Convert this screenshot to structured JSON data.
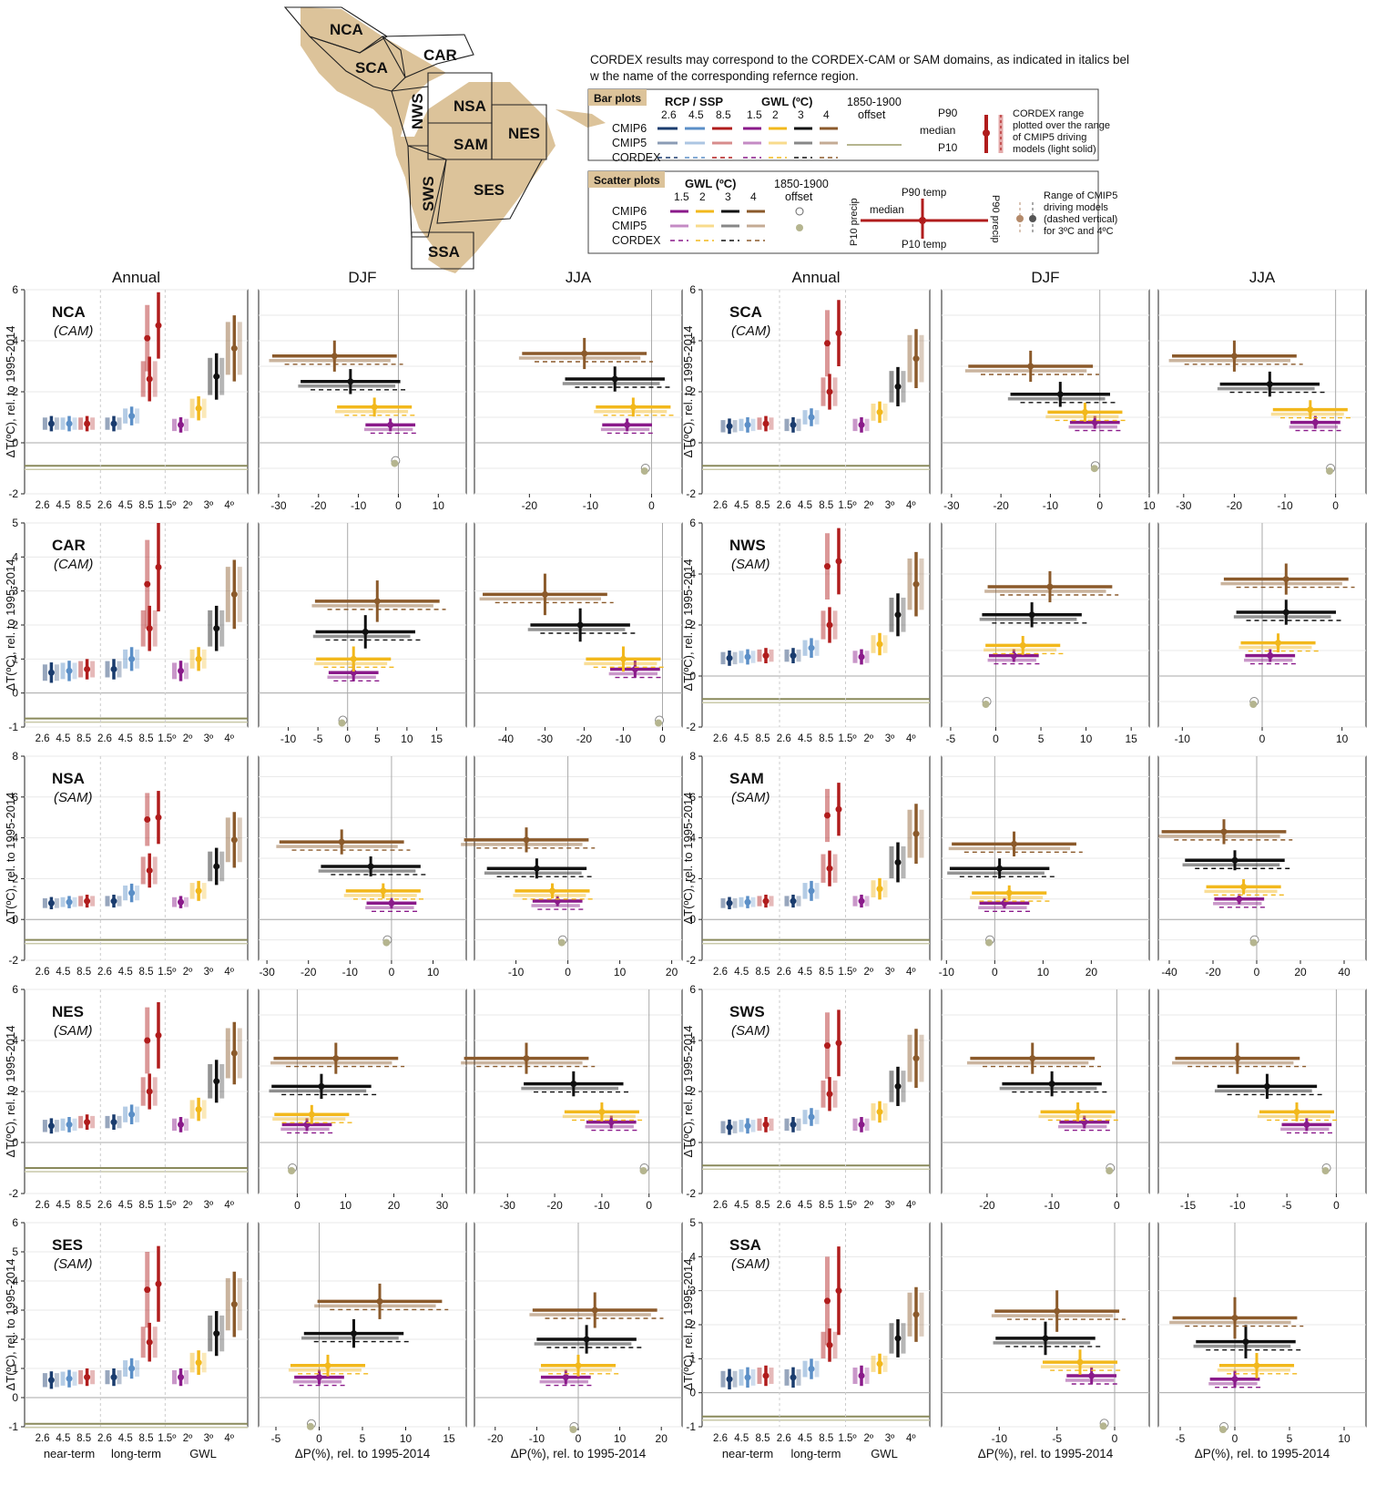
{
  "legend": {
    "note": "CORDEX results may correspond to the CORDEX-CAM or SAM domains, as indicated in italics below the name of the corresponding refernce region.",
    "bar_plots": {
      "title": "Bar plots",
      "rcp_label": "RCP / SSP",
      "rcp_ticks": [
        "2.6",
        "4.5",
        "8.5"
      ],
      "gwl_label": "GWL (ºC)",
      "gwl_ticks": [
        "1.5",
        "2",
        "3",
        "4"
      ],
      "offset_label": [
        "1850-1900",
        "offset"
      ],
      "rows": [
        "CMIP6",
        "CMIP5",
        "CORDEX"
      ],
      "whisker_labels": [
        "P90",
        "median",
        "P10"
      ],
      "note": [
        "CORDEX range",
        "plotted over the range",
        "of CMIP5 driving",
        "models (light solid)"
      ]
    },
    "scatter_plots": {
      "title": "Scatter plots",
      "gwl_label": "GWL (ºC)",
      "gwl_ticks": [
        "1.5",
        "2",
        "3",
        "4"
      ],
      "offset_label": [
        "1850-1900",
        "offset"
      ],
      "rows": [
        "CMIP6",
        "CMIP5",
        "CORDEX"
      ],
      "cross_labels": [
        "P90 temp",
        "median",
        "P10 temp",
        "P10 precip",
        "P90 precip"
      ],
      "note": [
        "Range of CMIP5",
        "driving models",
        "(dashed vertical)",
        "for 3ºC and 4ºC"
      ]
    }
  },
  "map": {
    "regions": [
      "NCA",
      "SCA",
      "CAR",
      "NWS",
      "NSA",
      "SAM",
      "NES",
      "SWS",
      "SES",
      "SSA"
    ]
  },
  "column_headers": [
    "Annual",
    "DJF",
    "JJA",
    "Annual",
    "DJF",
    "JJA"
  ],
  "axis_labels": {
    "y": "ΔT(ºC), rel. to 1995-2014",
    "x_precip": "ΔP(%), rel. to 1995-2014",
    "bar_groups": [
      "near-term",
      "long-term",
      "GWL"
    ],
    "bar_ticks": [
      "2.6",
      "4.5",
      "8.5",
      "2.6",
      "4.5",
      "8.5",
      "1.5º",
      "2º",
      "3º",
      "4º"
    ]
  },
  "colors": {
    "rcp26": "#1a3c6e",
    "rcp45": "#5b8fc7",
    "rcp85": "#b01c1c",
    "gwl15": "#8a1a8a",
    "gwl2": "#f2b81c",
    "gwl3": "#111111",
    "gwl4": "#8b5a2b",
    "offset": "#8a8a5c",
    "gridline": "#e8e8e8"
  },
  "chart_data": [
    {
      "region": "NCA",
      "domain": "(CAM)",
      "type": "bar",
      "yticks": [
        "-2",
        "0",
        "2",
        "4",
        "6"
      ],
      "ylim": [
        -2,
        6
      ],
      "near": [
        0.75,
        0.75,
        0.75
      ],
      "long": [
        0.75,
        1.05,
        2.5
      ],
      "h85": [
        4.1,
        4.6
      ],
      "gwl": [
        0.7,
        1.35,
        2.6,
        3.7
      ],
      "offset": -0.9,
      "djf": {
        "xticks": [
          "-30",
          "-20",
          "-10",
          "0",
          "10"
        ],
        "xlim": [
          -35,
          17
        ],
        "pts": [
          [
            -2,
            0.7
          ],
          [
            -6,
            1.4
          ],
          [
            -12,
            2.4
          ],
          [
            -16,
            3.4
          ]
        ],
        "off": [
          -0.7,
          -0.7
        ]
      },
      "jja": {
        "xticks": [
          "-20",
          "-10",
          "0"
        ],
        "xlim": [
          -29,
          5
        ],
        "pts": [
          [
            -4,
            0.7
          ],
          [
            -3,
            1.4
          ],
          [
            -6,
            2.5
          ],
          [
            -11,
            3.5
          ]
        ],
        "off": [
          -1,
          -1
        ]
      }
    },
    {
      "region": "SCA",
      "domain": "(CAM)",
      "type": "bar",
      "yticks": [
        "-2",
        "0",
        "2",
        "4",
        "6"
      ],
      "ylim": [
        -2,
        6
      ],
      "near": [
        0.65,
        0.7,
        0.75
      ],
      "long": [
        0.7,
        1.0,
        2.0
      ],
      "h85": [
        3.9,
        4.3
      ],
      "gwl": [
        0.7,
        1.2,
        2.2,
        3.3
      ],
      "offset": -0.9,
      "djf": {
        "xticks": [
          "-30",
          "-20",
          "-10",
          "0",
          "10"
        ],
        "xlim": [
          -32,
          10
        ],
        "pts": [
          [
            -1,
            0.8
          ],
          [
            -3,
            1.2
          ],
          [
            -8,
            1.9
          ],
          [
            -14,
            3.0
          ]
        ],
        "off": [
          -0.9,
          -0.9
        ]
      },
      "jja": {
        "xticks": [
          "-30",
          "-20",
          "-10",
          "0"
        ],
        "xlim": [
          -35,
          6
        ],
        "pts": [
          [
            -4,
            0.8
          ],
          [
            -5,
            1.3
          ],
          [
            -13,
            2.3
          ],
          [
            -20,
            3.4
          ]
        ],
        "off": [
          -1,
          -1
        ]
      }
    },
    {
      "region": "CAR",
      "domain": "(CAM)",
      "type": "bar",
      "yticks": [
        "-1",
        "0",
        "1",
        "2",
        "3",
        "4",
        "5"
      ],
      "ylim": [
        -1,
        5
      ],
      "near": [
        0.6,
        0.65,
        0.7
      ],
      "long": [
        0.7,
        1.0,
        1.9
      ],
      "h85": [
        3.2,
        3.7
      ],
      "gwl": [
        0.65,
        1.0,
        1.9,
        2.9
      ],
      "offset": -0.75,
      "djf": {
        "xticks": [
          "-10",
          "-5",
          "0",
          "5",
          "10",
          "15"
        ],
        "xlim": [
          -15,
          20
        ],
        "pts": [
          [
            1,
            0.6
          ],
          [
            1,
            1.0
          ],
          [
            3,
            1.8
          ],
          [
            5,
            2.7
          ]
        ],
        "off": [
          -0.8,
          -0.8
        ]
      },
      "jja": {
        "xticks": [
          "-40",
          "-30",
          "-20",
          "-10",
          "0"
        ],
        "xlim": [
          -48,
          5
        ],
        "pts": [
          [
            -7,
            0.7
          ],
          [
            -10,
            1.0
          ],
          [
            -21,
            2.0
          ],
          [
            -30,
            2.9
          ]
        ],
        "off": [
          -0.8,
          -0.8
        ]
      }
    },
    {
      "region": "NWS",
      "domain": "(SAM)",
      "type": "bar",
      "yticks": [
        "-2",
        "0",
        "2",
        "4",
        "6"
      ],
      "ylim": [
        -2,
        6
      ],
      "near": [
        0.7,
        0.75,
        0.8
      ],
      "long": [
        0.8,
        1.1,
        2.0
      ],
      "h85": [
        4.3,
        4.5
      ],
      "gwl": [
        0.75,
        1.25,
        2.4,
        3.6
      ],
      "offset": -0.9,
      "djf": {
        "xticks": [
          "-5",
          "0",
          "5",
          "10",
          "15"
        ],
        "xlim": [
          -6,
          17
        ],
        "pts": [
          [
            2,
            0.8
          ],
          [
            3,
            1.2
          ],
          [
            4,
            2.4
          ],
          [
            6,
            3.5
          ]
        ],
        "off": [
          -1,
          -1
        ]
      },
      "jja": {
        "xticks": [
          "-10",
          "0",
          "10"
        ],
        "xlim": [
          -13,
          13
        ],
        "pts": [
          [
            1,
            0.8
          ],
          [
            2,
            1.3
          ],
          [
            3,
            2.5
          ],
          [
            3,
            3.8
          ]
        ],
        "off": [
          -1,
          -1
        ]
      }
    },
    {
      "region": "NSA",
      "domain": "(SAM)",
      "type": "bar",
      "yticks": [
        "-2",
        "0",
        "2",
        "4",
        "6",
        "8"
      ],
      "ylim": [
        -2,
        8
      ],
      "near": [
        0.8,
        0.85,
        0.9
      ],
      "long": [
        0.9,
        1.3,
        2.4
      ],
      "h85": [
        4.9,
        5.0
      ],
      "gwl": [
        0.85,
        1.4,
        2.6,
        3.9
      ],
      "offset": -1.0,
      "djf": {
        "xticks": [
          "-30",
          "-20",
          "-10",
          "0",
          "10"
        ],
        "xlim": [
          -32,
          18
        ],
        "pts": [
          [
            0,
            0.8
          ],
          [
            -2,
            1.4
          ],
          [
            -5,
            2.6
          ],
          [
            -12,
            3.8
          ]
        ],
        "off": [
          -1,
          -1
        ]
      },
      "jja": {
        "xticks": [
          "-10",
          "0",
          "10",
          "20"
        ],
        "xlim": [
          -18,
          22
        ],
        "pts": [
          [
            -2,
            0.9
          ],
          [
            -3,
            1.4
          ],
          [
            -6,
            2.5
          ],
          [
            -8,
            3.9
          ]
        ],
        "off": [
          -1,
          -1
        ]
      }
    },
    {
      "region": "SAM",
      "domain": "(SAM)",
      "type": "bar",
      "yticks": [
        "-2",
        "0",
        "2",
        "4",
        "6",
        "8"
      ],
      "ylim": [
        -2,
        8
      ],
      "near": [
        0.8,
        0.85,
        0.9
      ],
      "long": [
        0.9,
        1.4,
        2.5
      ],
      "h85": [
        5.1,
        5.4
      ],
      "gwl": [
        0.9,
        1.5,
        2.8,
        4.2
      ],
      "offset": -1.0,
      "djf": {
        "xticks": [
          "-10",
          "0",
          "10",
          "20"
        ],
        "xlim": [
          -11,
          32
        ],
        "pts": [
          [
            2,
            0.8
          ],
          [
            3,
            1.3
          ],
          [
            1,
            2.5
          ],
          [
            4,
            3.7
          ]
        ],
        "off": [
          -1,
          -1
        ]
      },
      "jja": {
        "xticks": [
          "-40",
          "-20",
          "0",
          "20",
          "40"
        ],
        "xlim": [
          -45,
          50
        ],
        "pts": [
          [
            -8,
            1.0
          ],
          [
            -6,
            1.6
          ],
          [
            -10,
            2.9
          ],
          [
            -15,
            4.3
          ]
        ],
        "off": [
          -1,
          -1
        ]
      }
    },
    {
      "region": "NES",
      "domain": "(SAM)",
      "type": "bar",
      "yticks": [
        "-2",
        "0",
        "2",
        "4",
        "6"
      ],
      "ylim": [
        -2,
        6
      ],
      "near": [
        0.65,
        0.7,
        0.8
      ],
      "long": [
        0.8,
        1.1,
        2.0
      ],
      "h85": [
        4.0,
        4.2
      ],
      "gwl": [
        0.7,
        1.3,
        2.4,
        3.5
      ],
      "offset": -1.0,
      "djf": {
        "xticks": [
          "0",
          "10",
          "20",
          "30"
        ],
        "xlim": [
          -8,
          35
        ],
        "pts": [
          [
            2,
            0.7
          ],
          [
            3,
            1.1
          ],
          [
            5,
            2.2
          ],
          [
            8,
            3.3
          ]
        ],
        "off": [
          -1,
          -1
        ]
      },
      "jja": {
        "xticks": [
          "-30",
          "-20",
          "-10",
          "0"
        ],
        "xlim": [
          -37,
          7
        ],
        "pts": [
          [
            -8,
            0.8
          ],
          [
            -10,
            1.2
          ],
          [
            -16,
            2.3
          ],
          [
            -26,
            3.3
          ]
        ],
        "off": [
          -1,
          -1
        ]
      }
    },
    {
      "region": "SWS",
      "domain": "(SAM)",
      "type": "bar",
      "yticks": [
        "-2",
        "0",
        "2",
        "4",
        "6"
      ],
      "ylim": [
        -2,
        6
      ],
      "near": [
        0.6,
        0.65,
        0.7
      ],
      "long": [
        0.7,
        1.0,
        1.9
      ],
      "h85": [
        3.8,
        3.9
      ],
      "gwl": [
        0.7,
        1.2,
        2.2,
        3.3
      ],
      "offset": -0.9,
      "djf": {
        "xticks": [
          "-20",
          "-10",
          "0"
        ],
        "xlim": [
          -27,
          5
        ],
        "pts": [
          [
            -5,
            0.8
          ],
          [
            -6,
            1.2
          ],
          [
            -10,
            2.3
          ],
          [
            -13,
            3.3
          ]
        ],
        "off": [
          -1,
          -1
        ]
      },
      "jja": {
        "xticks": [
          "-15",
          "-10",
          "-5",
          "0"
        ],
        "xlim": [
          -18,
          3
        ],
        "pts": [
          [
            -3,
            0.7
          ],
          [
            -4,
            1.2
          ],
          [
            -7,
            2.2
          ],
          [
            -10,
            3.3
          ]
        ],
        "off": [
          -1,
          -1
        ]
      }
    },
    {
      "region": "SES",
      "domain": "(SAM)",
      "type": "bar",
      "yticks": [
        "-1",
        "0",
        "1",
        "2",
        "3",
        "4",
        "5",
        "6"
      ],
      "ylim": [
        -1,
        6
      ],
      "near": [
        0.6,
        0.65,
        0.7
      ],
      "long": [
        0.7,
        1.0,
        1.9
      ],
      "h85": [
        3.7,
        3.9
      ],
      "gwl": [
        0.7,
        1.2,
        2.2,
        3.2
      ],
      "offset": -0.9,
      "djf": {
        "xticks": [
          "-5",
          "0",
          "5",
          "10",
          "15"
        ],
        "xlim": [
          -7,
          17
        ],
        "pts": [
          [
            0,
            0.7
          ],
          [
            1,
            1.1
          ],
          [
            4,
            2.2
          ],
          [
            7,
            3.3
          ]
        ],
        "off": [
          -0.9,
          -0.9
        ]
      },
      "jja": {
        "xticks": [
          "-20",
          "-10",
          "0",
          "10",
          "20"
        ],
        "xlim": [
          -25,
          25
        ],
        "pts": [
          [
            -3,
            0.7
          ],
          [
            0,
            1.1
          ],
          [
            2,
            2.0
          ],
          [
            4,
            3.0
          ]
        ],
        "off": [
          -1,
          -1
        ]
      }
    },
    {
      "region": "SSA",
      "domain": "(SAM)",
      "type": "bar",
      "yticks": [
        "-1",
        "0",
        "1",
        "2",
        "3",
        "4",
        "5"
      ],
      "ylim": [
        -1,
        5
      ],
      "near": [
        0.4,
        0.45,
        0.5
      ],
      "long": [
        0.45,
        0.7,
        1.4
      ],
      "h85": [
        2.7,
        3.0
      ],
      "gwl": [
        0.5,
        0.85,
        1.6,
        2.3
      ],
      "offset": -0.7,
      "djf": {
        "xticks": [
          "-10",
          "-5",
          "0"
        ],
        "xlim": [
          -15,
          3
        ],
        "pts": [
          [
            -2,
            0.5
          ],
          [
            -3,
            0.9
          ],
          [
            -6,
            1.6
          ],
          [
            -5,
            2.4
          ]
        ],
        "off": [
          -0.9,
          -0.9
        ]
      },
      "jja": {
        "xticks": [
          "-5",
          "0",
          "5",
          "10"
        ],
        "xlim": [
          -7,
          12
        ],
        "pts": [
          [
            0,
            0.4
          ],
          [
            2,
            0.8
          ],
          [
            1,
            1.5
          ],
          [
            0,
            2.2
          ]
        ],
        "off": [
          -1,
          -1
        ]
      }
    }
  ]
}
